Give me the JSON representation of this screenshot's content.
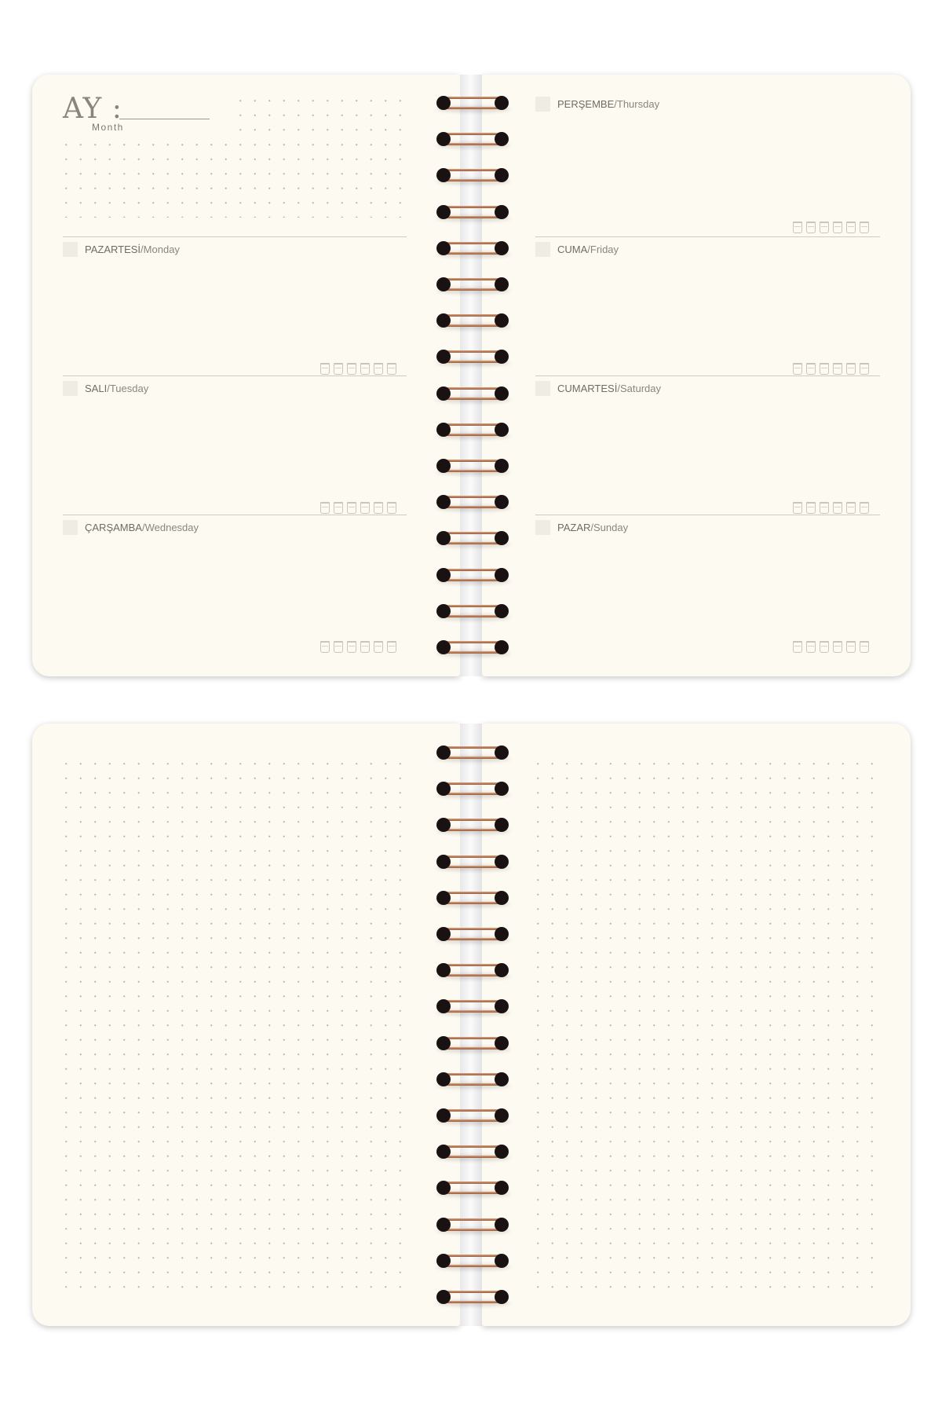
{
  "planner": {
    "month_label": "AY :",
    "month_sublabel": "Month",
    "left_days": [
      {
        "tr": "PAZARTESİ",
        "en": "Monday"
      },
      {
        "tr": "SALI",
        "en": "Tuesday"
      },
      {
        "tr": "ÇARŞAMBA",
        "en": "Wednesday"
      }
    ],
    "right_days": [
      {
        "tr": "PERŞEMBE",
        "en": "Thursday"
      },
      {
        "tr": "CUMA",
        "en": "Friday"
      },
      {
        "tr": "CUMARTESİ",
        "en": "Saturday"
      },
      {
        "tr": "PAZAR",
        "en": "Sunday"
      }
    ],
    "separator": " / ",
    "water_cups_per_day": 6,
    "ring_count": 16
  },
  "colors": {
    "paper": "#fdfbf1",
    "ring": "#b87a55",
    "text": "#706b63"
  }
}
